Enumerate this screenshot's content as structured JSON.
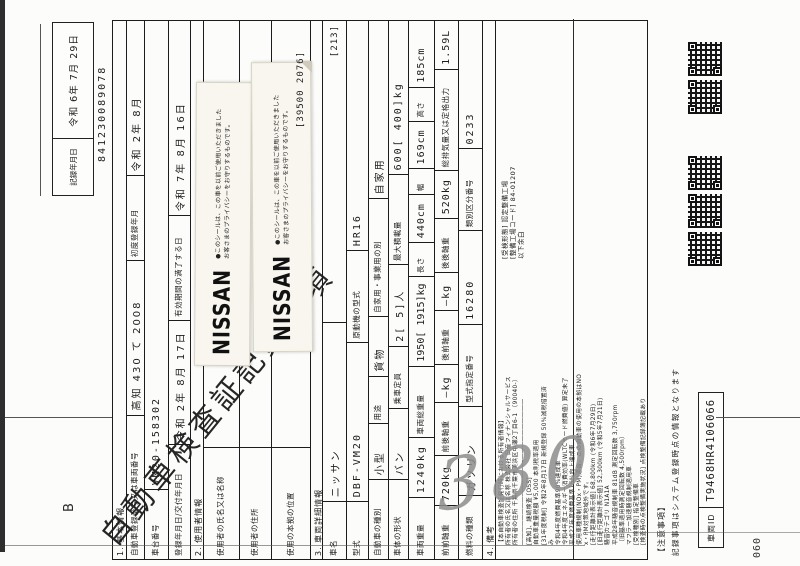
{
  "doc": {
    "page_marker": "B",
    "title": "自動車検査証記録事項"
  },
  "record_header": {
    "label": "記録年月日",
    "value": "令和 6年 7月 29日",
    "serial": "841230089078"
  },
  "form": {
    "basic": {
      "section": "1. 基本情報",
      "reg_no": {
        "label": "自動車登録番号又は車両番号",
        "value": "高知 430 て 2008"
      },
      "first_reg": {
        "label": "初度登録年月",
        "value": "令和 2年 8月"
      },
      "chassis_no": {
        "label": "車台番号",
        "value": "VM20-158302"
      },
      "reg_date": {
        "label": "登録年月日/交付年月日",
        "value": "令和 2年 8月 17日"
      },
      "expiry": {
        "label": "有効期間の満了する日",
        "value": "令和 7年 8月 16日"
      }
    },
    "user": {
      "section": "2. 使用者情報",
      "name_label": "使用者の氏名又は名称",
      "address_label": "使用者の住所",
      "base_label": "使用の本拠の位置",
      "side_code": "[39500 2076]"
    },
    "vehicle": {
      "section": "3. 車両詳細情報",
      "make": {
        "label": "車名",
        "value": "ニッサン"
      },
      "code": "[213]",
      "model": {
        "label": "型式",
        "value": "DBF-VM20"
      },
      "engine": {
        "label": "原動機の型式",
        "value": "HR16"
      },
      "category": {
        "label": "自動車の種別",
        "value": "小型"
      },
      "use": {
        "label": "用途",
        "value": "貨物"
      },
      "private_use": {
        "label": "自家用・事業用の別",
        "value": "自家用"
      },
      "body": {
        "label": "車体の形状",
        "value": "バン"
      },
      "capacity": {
        "label": "乗車定員",
        "value": "2[ 5]人"
      },
      "max_load": {
        "label": "最大積載量",
        "value": "600[ 400]kg"
      },
      "weight": {
        "label": "車両重量",
        "value": "1240kg"
      },
      "gross_weight": {
        "label": "車両総重量",
        "value": "1950[ 1915]kg"
      },
      "length": {
        "label": "長さ",
        "value": "440cm"
      },
      "width": {
        "label": "幅",
        "value": "169cm"
      },
      "height": {
        "label": "高さ",
        "value": "185cm"
      },
      "axle_ff": {
        "label": "前前軸重",
        "value": "720kg"
      },
      "axle_fr": {
        "label": "前後軸重",
        "value": "―kg"
      },
      "axle_rf": {
        "label": "後前軸重",
        "value": "―kg"
      },
      "axle_rr": {
        "label": "後後軸重",
        "value": "520kg"
      },
      "displacement": {
        "label": "総排気量又は定格出力",
        "value": "1.59L"
      },
      "fuel": {
        "label": "燃料の種類",
        "value": "ガソリン"
      },
      "type_no": {
        "label": "型式指定番号",
        "value": "16280"
      },
      "class_no": {
        "label": "類別区分番号",
        "value": "0233"
      }
    },
    "remarks": {
      "section": "4. 備考",
      "lines": [
        "【本自動車検査証発行時における所有者情報】",
        "所有者の氏名又は名称 株式会社 日産フィナンシャルサービス",
        "所有者の住所 千葉県千葉市美浜区中瀬2丁目6-1 〔90040-〕",
        "――――――――――――――――――――――――",
        "[高知]、継続検査 [OSS]",
        "自動車重量税額 ¥5,000 本則税率適用",
        "[31年度税制] 令和2年8月17日 新規登録 50%減税措置済",
        "み",
        "令和4年度燃費基準90%達成車",
        "令和4年度エネルギー消費効率(WLTCモード燃費値) 算定未了",
        "平成27年度燃費基準15%向上達成車",
        "使用車種規制(NOx・PM)適合。この自動車の使用の本拠はNO",
        "x・PM対策地域外です。",
        "[走行距離計表示値] 68,800km (令和6年7月29日)",
        "[旧走行距離計表示値] 52,300km (令和5年7月21日)",
        "騒音カテゴリ N1A1A",
        "平成28年騒音規制車 81dB 測定回転数 3,750rpm",
        "〔旧基準適用時測定回転数 4,500rpm〕",
        "マフラー加速騒音規制適用車",
        "[受検種別] 指定整備車",
        "[検査時の点検整備実施状況] 点検整備記録簿記載あり"
      ],
      "right_block": [
        "[受検形態] 認定整備工場",
        "[整備工場コード] 84-01207",
        "以下余白"
      ]
    }
  },
  "sticker": {
    "brand": "NISSAN",
    "line1": "●このシールは、この車を以前ご使用いただきました",
    "line2": "お客さまのプライバシーをお守りするものです。"
  },
  "handwriting": "380",
  "footer": {
    "notice_title": "【注意事項】",
    "notice_text": "記録事項はシステム登録時点の情報となります",
    "vehicle_id_label": "車両ID",
    "vehicle_id": "T9468HR4106066",
    "page_code": "060",
    "qr_count": 5
  }
}
